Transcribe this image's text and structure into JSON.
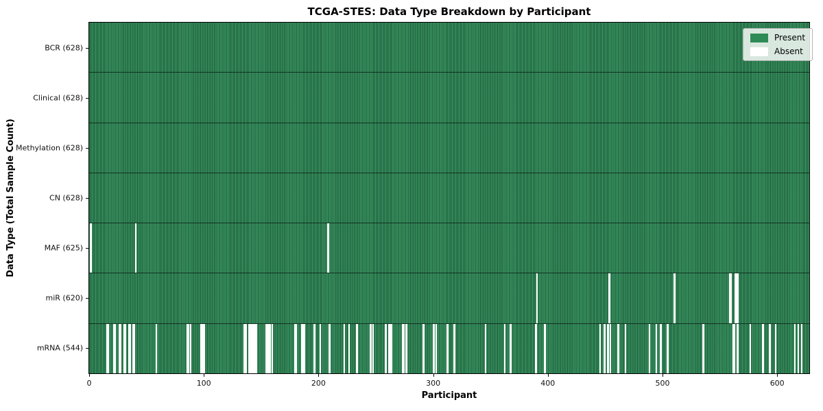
{
  "figure": {
    "title": "TCGA-STES: Data Type Breakdown by Participant",
    "xlabel": "Participant",
    "ylabel": "Data Type (Total Sample Count)"
  },
  "legend": {
    "items": [
      {
        "label": "Present",
        "color": "#2e8b57"
      },
      {
        "label": "Absent",
        "color": "#ffffff"
      }
    ],
    "position": "upper right"
  },
  "chart_data": {
    "type": "heatmap",
    "title": "TCGA-STES: Data Type Breakdown by Participant",
    "xlabel": "Participant",
    "ylabel": "Data Type (Total Sample Count)",
    "n_participants": 628,
    "x_range": [
      0,
      628
    ],
    "x_ticks": [
      0,
      100,
      200,
      300,
      400,
      500,
      600
    ],
    "grid": false,
    "colors": {
      "present": "#2e8b57",
      "present_edge": "#1b5e3b",
      "absent": "#ffffff",
      "row_separator": "#0f2d1d"
    },
    "rows": [
      {
        "label": "BCR",
        "present_count": 628,
        "tick_label": "BCR (628)",
        "absent_participants": []
      },
      {
        "label": "Clinical",
        "present_count": 628,
        "tick_label": "Clinical (628)",
        "absent_participants": []
      },
      {
        "label": "Methylation",
        "present_count": 628,
        "tick_label": "Methylation (628)",
        "absent_participants": []
      },
      {
        "label": "CN",
        "present_count": 628,
        "tick_label": "CN (628)",
        "absent_participants": []
      },
      {
        "label": "MAF",
        "present_count": 625,
        "tick_label": "MAF (625)",
        "absent_participants": [
          1,
          40,
          208
        ]
      },
      {
        "label": "miR",
        "present_count": 620,
        "tick_label": "miR (620)",
        "absent_participants": [
          390,
          453,
          510,
          558,
          559,
          563,
          564,
          565
        ]
      },
      {
        "label": "mRNA",
        "present_count": 544,
        "tick_label": "mRNA (544)",
        "absent_participants": [
          15,
          16,
          21,
          22,
          26,
          27,
          30,
          31,
          34,
          35,
          38,
          39,
          58,
          85,
          86,
          88,
          97,
          98,
          99,
          100,
          135,
          136,
          139,
          140,
          141,
          142,
          143,
          144,
          145,
          154,
          155,
          156,
          157,
          159,
          179,
          180,
          185,
          186,
          187,
          196,
          201,
          209,
          222,
          226,
          233,
          245,
          247,
          258,
          261,
          263,
          273,
          274,
          276,
          291,
          300,
          302,
          312,
          318,
          345,
          362,
          367,
          389,
          397,
          445,
          449,
          452,
          454,
          461,
          467,
          488,
          494,
          498,
          504,
          535,
          561,
          562,
          565,
          576,
          587,
          593,
          598,
          615,
          618,
          621
        ]
      }
    ]
  }
}
